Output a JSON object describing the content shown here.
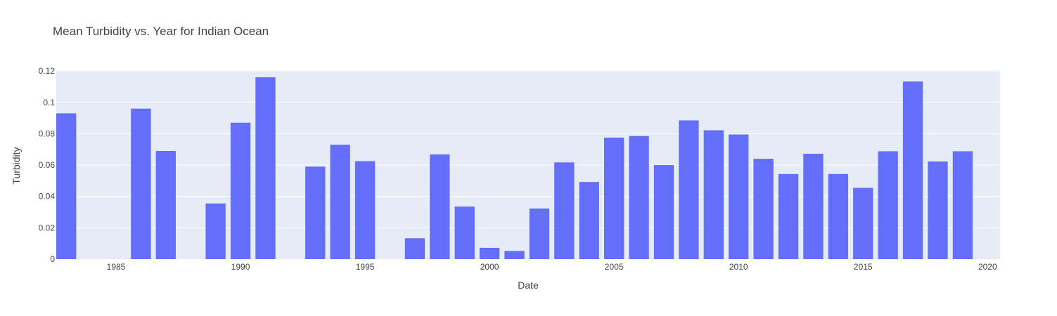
{
  "chart_data": {
    "type": "bar",
    "title": "Mean Turbidity vs. Year for Indian Ocean",
    "xlabel": "Date",
    "ylabel": "Turbidity",
    "x": [
      1983,
      1986,
      1987,
      1989,
      1990,
      1991,
      1993,
      1994,
      1995,
      1997,
      1998,
      1999,
      2000,
      2001,
      2002,
      2003,
      2004,
      2005,
      2006,
      2007,
      2008,
      2009,
      2010,
      2011,
      2012,
      2013,
      2014,
      2015,
      2016,
      2017,
      2018,
      2019
    ],
    "values": [
      0.093,
      0.096,
      0.069,
      0.0355,
      0.087,
      0.116,
      0.059,
      0.073,
      0.0625,
      0.0133,
      0.0668,
      0.0335,
      0.0072,
      0.0052,
      0.0323,
      0.0617,
      0.0492,
      0.0775,
      0.0785,
      0.06,
      0.0885,
      0.0822,
      0.0795,
      0.064,
      0.0543,
      0.0672,
      0.0543,
      0.0455,
      0.0688,
      0.1133,
      0.0623,
      0.0688
    ],
    "xlim": [
      1982.6,
      2020.5
    ],
    "ylim": [
      0,
      0.1205
    ],
    "x_ticks": [
      "1985",
      "1990",
      "1995",
      "2000",
      "2005",
      "2010",
      "2015",
      "2020"
    ],
    "y_ticks": [
      "0",
      "0.02",
      "0.04",
      "0.06",
      "0.08",
      "0.1",
      "0.12"
    ],
    "grid": true,
    "colors": {
      "bar": "#636efa",
      "plot_bg": "#e5ecf6",
      "grid": "#ffffff",
      "text": "#444444"
    }
  }
}
